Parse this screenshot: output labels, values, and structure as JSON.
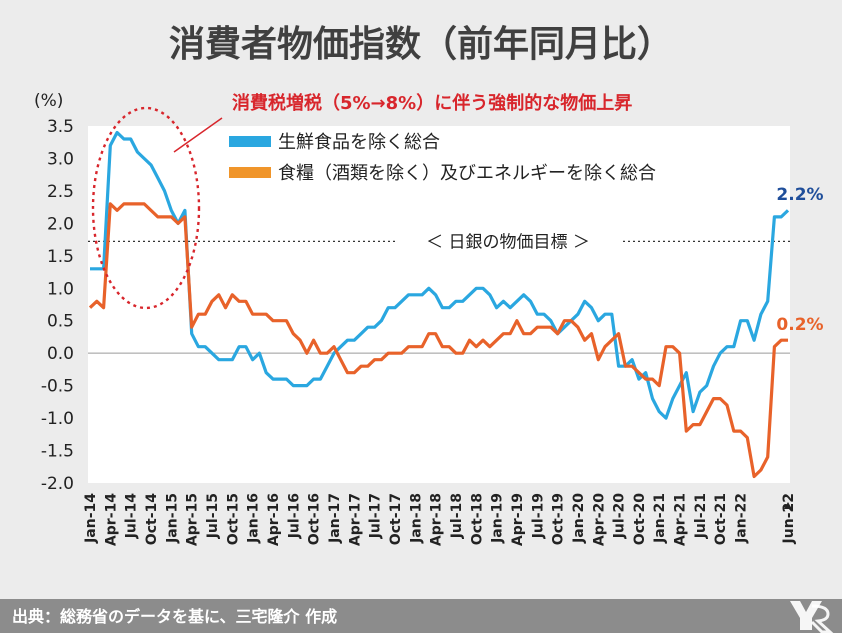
{
  "title": "消費者物価指数（前年同月比）",
  "footer": "出典：総務省のデータを基に、三宅隆介 作成",
  "colors": {
    "background": "#ececec",
    "plot_background": "#ffffff",
    "blue": "#2aa7e0",
    "orange": "#e8622a",
    "annotation_red": "#d8262c",
    "label_blue": "#1f4e9a",
    "footer_bar": "#8c8c8c"
  },
  "chart_data": {
    "type": "line",
    "title": "消費者物価指数（前年同月比）",
    "ylabel": "(%)",
    "xlabel": "",
    "ylim": [
      -2.0,
      3.5
    ],
    "yticks": [
      "3.5",
      "3.0",
      "2.5",
      "2.0",
      "1.5",
      "1.0",
      "0.5",
      "0.0",
      "-0.5",
      "-1.0",
      "-1.5",
      "-2.0"
    ],
    "ytick_values": [
      3.5,
      3.0,
      2.5,
      2.0,
      1.5,
      1.0,
      0.5,
      0.0,
      -0.5,
      -1.0,
      -1.5,
      -2.0
    ],
    "x_range": [
      "2014-01",
      "2022-06"
    ],
    "xtick_labels": [
      "Jan-14",
      "Apr-14",
      "Jul-14",
      "Oct-14",
      "Jan-15",
      "Apr-15",
      "Jul-15",
      "Oct-15",
      "Jan-16",
      "Apr-16",
      "Jul-16",
      "Oct-16",
      "Jan-17",
      "Apr-17",
      "Jul-17",
      "Oct-17",
      "Jan-18",
      "Apr-18",
      "Jul-18",
      "Oct-18",
      "Jan-19",
      "Apr-19",
      "Jul-19",
      "Oct-19",
      "Jan-20",
      "Apr-20",
      "Jul-20",
      "Oct-20",
      "Jan-21",
      "Apr-21",
      "Jul-21",
      "Oct-21",
      "Jan-22",
      "Jun-22"
    ],
    "legend_placement": "top",
    "grid": false,
    "series": [
      {
        "name": "生鮮食品を除く総合",
        "color": "#2aa7e0",
        "end_label": "2.2%",
        "values": [
          1.3,
          1.3,
          1.3,
          3.2,
          3.4,
          3.3,
          3.3,
          3.1,
          3.0,
          2.9,
          2.7,
          2.5,
          2.2,
          2.0,
          2.2,
          0.3,
          0.1,
          0.1,
          0.0,
          -0.1,
          -0.1,
          -0.1,
          0.1,
          0.1,
          -0.1,
          0.0,
          -0.3,
          -0.4,
          -0.4,
          -0.4,
          -0.5,
          -0.5,
          -0.5,
          -0.4,
          -0.4,
          -0.2,
          0.0,
          0.1,
          0.2,
          0.2,
          0.3,
          0.4,
          0.4,
          0.5,
          0.7,
          0.7,
          0.8,
          0.9,
          0.9,
          0.9,
          1.0,
          0.9,
          0.7,
          0.7,
          0.8,
          0.8,
          0.9,
          1.0,
          1.0,
          0.9,
          0.7,
          0.8,
          0.7,
          0.8,
          0.9,
          0.8,
          0.6,
          0.6,
          0.5,
          0.3,
          0.4,
          0.5,
          0.6,
          0.8,
          0.7,
          0.5,
          0.6,
          0.6,
          -0.2,
          -0.2,
          -0.1,
          -0.4,
          -0.3,
          -0.7,
          -0.9,
          -1.0,
          -0.7,
          -0.5,
          -0.3,
          -0.9,
          -0.6,
          -0.5,
          -0.2,
          0.0,
          0.1,
          0.1,
          0.5,
          0.5,
          0.2,
          0.6,
          0.8,
          2.1,
          2.1,
          2.2
        ]
      },
      {
        "name": "食糧（酒類を除く）及びエネルギーを除く総合",
        "color": "#e8622a",
        "end_label": "0.2%",
        "values": [
          0.7,
          0.8,
          0.7,
          2.3,
          2.2,
          2.3,
          2.3,
          2.3,
          2.3,
          2.2,
          2.1,
          2.1,
          2.1,
          2.0,
          2.1,
          0.4,
          0.6,
          0.6,
          0.8,
          0.9,
          0.7,
          0.9,
          0.8,
          0.8,
          0.6,
          0.6,
          0.6,
          0.5,
          0.5,
          0.5,
          0.3,
          0.2,
          0.0,
          0.2,
          0.0,
          0.0,
          0.1,
          -0.1,
          -0.3,
          -0.3,
          -0.2,
          -0.2,
          -0.1,
          -0.1,
          0.0,
          0.0,
          0.0,
          0.1,
          0.1,
          0.1,
          0.3,
          0.3,
          0.1,
          0.1,
          0.0,
          0.0,
          0.2,
          0.1,
          0.2,
          0.1,
          0.2,
          0.3,
          0.3,
          0.5,
          0.3,
          0.3,
          0.4,
          0.4,
          0.4,
          0.3,
          0.5,
          0.5,
          0.4,
          0.2,
          0.3,
          -0.1,
          0.1,
          0.2,
          0.3,
          -0.2,
          -0.2,
          -0.3,
          -0.4,
          -0.4,
          -0.5,
          0.1,
          0.1,
          0.0,
          -1.2,
          -1.1,
          -1.1,
          -0.9,
          -0.7,
          -0.7,
          -0.8,
          -1.2,
          -1.2,
          -1.3,
          -1.9,
          -1.8,
          -1.6,
          0.1,
          0.2,
          0.2
        ]
      }
    ],
    "reference_line": {
      "value": 2.0,
      "label": "＜ 日銀の物価目標 ＞"
    },
    "annotation": {
      "text": "消費税増税（5%→8%）に伴う強制的な物価上昇"
    }
  }
}
